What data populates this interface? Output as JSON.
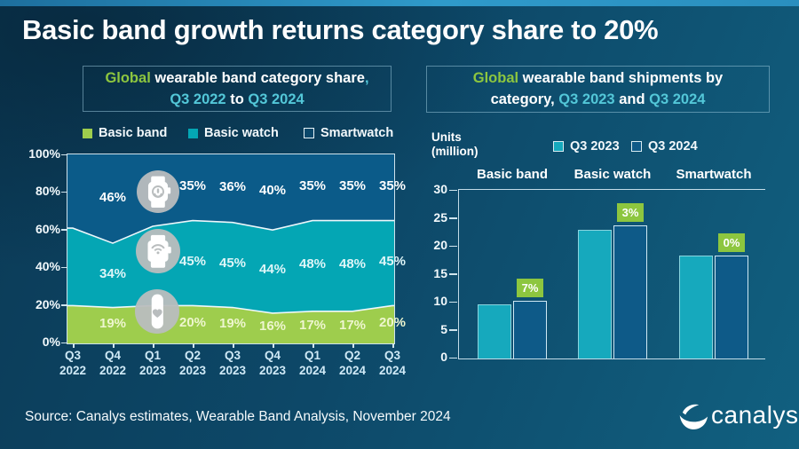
{
  "title": "Basic band growth returns category share to 20%",
  "colors": {
    "accent_green": "#8dc63f",
    "accent_cyan": "#53c7d8",
    "axis_line": "#d9ecf5",
    "badge_bg": "#8dc63f",
    "icon_circle": "#b9bdbe"
  },
  "left_panel": {
    "header_segments": [
      {
        "text": "Global ",
        "color": "#8dc63f"
      },
      {
        "text": "wearable band category share",
        "color": "#ffffff"
      },
      {
        "text": ",",
        "color": "#53c7d8"
      },
      {
        "br": true
      },
      {
        "text": "Q3 2022",
        "color": "#53c7d8"
      },
      {
        "text": " to ",
        "color": "#ffffff"
      },
      {
        "text": "Q3 2024",
        "color": "#53c7d8"
      }
    ],
    "legend": [
      {
        "label": "Basic band"
      },
      {
        "label": "Basic watch"
      },
      {
        "label": "Smartwatch"
      }
    ]
  },
  "right_panel": {
    "header_segments": [
      {
        "text": "Global ",
        "color": "#8dc63f"
      },
      {
        "text": "wearable band shipments by",
        "color": "#ffffff"
      },
      {
        "br": true
      },
      {
        "text": "category, ",
        "color": "#ffffff"
      },
      {
        "text": "Q3 2023",
        "color": "#53c7d8"
      },
      {
        "text": " and ",
        "color": "#ffffff"
      },
      {
        "text": "Q3 2024",
        "color": "#53c7d8"
      }
    ],
    "units_line1": "Units",
    "units_line2": "(million)",
    "legend": [
      {
        "label": "Q3 2023"
      },
      {
        "label": "Q3 2024"
      }
    ]
  },
  "chart_data": [
    {
      "type": "area",
      "stacked": true,
      "title": "Global wearable band category share, Q3 2022 to Q3 2024",
      "categories": [
        "Q3 2022",
        "Q4 2022",
        "Q1 2023",
        "Q2 2023",
        "Q3 2023",
        "Q4 2023",
        "Q1 2024",
        "Q2 2024",
        "Q3 2024"
      ],
      "series": [
        {
          "name": "Basic band",
          "color": "#9ecd4d",
          "label_color": "#eef6cf",
          "values": [
            20,
            19,
            20,
            20,
            19,
            16,
            17,
            17,
            20
          ],
          "labels": [
            "",
            "19%",
            "",
            "20%",
            "19%",
            "16%",
            "17%",
            "17%",
            "20%"
          ]
        },
        {
          "name": "Basic watch",
          "color": "#04a6b4",
          "label_color": "#dff6f8",
          "values": [
            41,
            34,
            42,
            45,
            45,
            44,
            48,
            48,
            45
          ],
          "labels": [
            "",
            "34%",
            "",
            "45%",
            "45%",
            "44%",
            "48%",
            "48%",
            "45%"
          ]
        },
        {
          "name": "Smartwatch",
          "color": "#0b5b89",
          "label_color": "#ffffff",
          "values": [
            39,
            46,
            38,
            35,
            36,
            40,
            35,
            35,
            35
          ],
          "labels": [
            "",
            "46%",
            "",
            "35%",
            "36%",
            "40%",
            "35%",
            "35%",
            "35%"
          ]
        }
      ],
      "ylim": [
        0,
        100
      ],
      "ytick_values": [
        0,
        20,
        40,
        60,
        80,
        100
      ],
      "ytick_labels": [
        "0%",
        "20%",
        "40%",
        "60%",
        "80%",
        "100%"
      ]
    },
    {
      "type": "bar",
      "title": "Global wearable band shipments by category, Q3 2023 and Q3 2024",
      "ylabel": "Units (million)",
      "categories": [
        "Basic band",
        "Basic watch",
        "Smartwatch"
      ],
      "series": [
        {
          "name": "Q3 2023",
          "color": "#16a9bd",
          "values": [
            9.7,
            23.1,
            18.4
          ]
        },
        {
          "name": "Q3 2024",
          "color": "#0e5a88",
          "values": [
            10.4,
            23.8,
            18.4
          ]
        }
      ],
      "growth_labels": [
        "7%",
        "3%",
        "0%"
      ],
      "ylim": [
        0,
        30
      ],
      "ytick_values": [
        0,
        5,
        10,
        15,
        20,
        25,
        30
      ]
    }
  ],
  "source": "Source: Canalys estimates, Wearable Band Analysis, November 2024",
  "logo": {
    "text": "canalys"
  }
}
